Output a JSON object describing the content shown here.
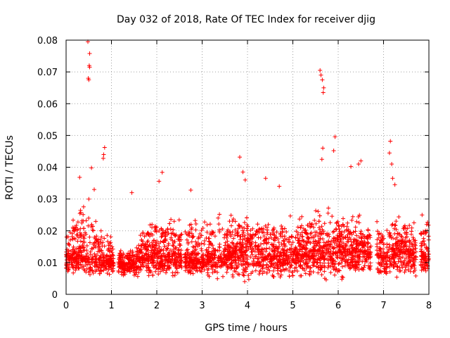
{
  "chart_data": {
    "type": "scatter",
    "title": "Day 032 of 2018, Rate Of TEC Index for receiver djig",
    "xlabel": "GPS time / hours",
    "ylabel": "ROTI / TECUs",
    "xlim": [
      0,
      8
    ],
    "ylim": [
      0,
      0.08
    ],
    "x_ticks": [
      "0",
      "1",
      "2",
      "3",
      "4",
      "5",
      "6",
      "7",
      "8"
    ],
    "y_ticks": [
      "0",
      "0.01",
      "0.02",
      "0.03",
      "0.04",
      "0.05",
      "0.06",
      "0.07",
      "0.08"
    ],
    "grid": true,
    "marker": "+",
    "color": "#ff0000",
    "series": [
      {
        "name": "ROTI",
        "highlight_points": [
          {
            "x": 0.48,
            "y": 0.0795
          },
          {
            "x": 0.52,
            "y": 0.0758
          },
          {
            "x": 0.51,
            "y": 0.072
          },
          {
            "x": 0.52,
            "y": 0.0715
          },
          {
            "x": 0.49,
            "y": 0.068
          },
          {
            "x": 0.5,
            "y": 0.0675
          },
          {
            "x": 0.56,
            "y": 0.0398
          },
          {
            "x": 0.85,
            "y": 0.0462
          },
          {
            "x": 0.83,
            "y": 0.044
          },
          {
            "x": 0.82,
            "y": 0.0428
          },
          {
            "x": 0.3,
            "y": 0.0368
          },
          {
            "x": 0.62,
            "y": 0.033
          },
          {
            "x": 1.45,
            "y": 0.032
          },
          {
            "x": 2.12,
            "y": 0.0384
          },
          {
            "x": 2.05,
            "y": 0.0356
          },
          {
            "x": 2.75,
            "y": 0.0328
          },
          {
            "x": 3.83,
            "y": 0.0432
          },
          {
            "x": 3.9,
            "y": 0.0385
          },
          {
            "x": 3.95,
            "y": 0.036
          },
          {
            "x": 4.4,
            "y": 0.0365
          },
          {
            "x": 4.7,
            "y": 0.034
          },
          {
            "x": 5.6,
            "y": 0.0705
          },
          {
            "x": 5.62,
            "y": 0.069
          },
          {
            "x": 5.65,
            "y": 0.0675
          },
          {
            "x": 5.68,
            "y": 0.065
          },
          {
            "x": 5.67,
            "y": 0.0635
          },
          {
            "x": 5.66,
            "y": 0.046
          },
          {
            "x": 5.64,
            "y": 0.0425
          },
          {
            "x": 5.93,
            "y": 0.0496
          },
          {
            "x": 5.9,
            "y": 0.0452
          },
          {
            "x": 6.28,
            "y": 0.0402
          },
          {
            "x": 6.45,
            "y": 0.041
          },
          {
            "x": 6.5,
            "y": 0.042
          },
          {
            "x": 7.15,
            "y": 0.0482
          },
          {
            "x": 7.13,
            "y": 0.0445
          },
          {
            "x": 7.18,
            "y": 0.041
          },
          {
            "x": 7.2,
            "y": 0.0365
          },
          {
            "x": 7.25,
            "y": 0.0345
          },
          {
            "x": 7.85,
            "y": 0.025
          },
          {
            "x": 7.95,
            "y": 0.022
          }
        ],
        "envelope": {
          "x_hours": [
            0.0,
            0.25,
            0.5,
            0.75,
            1.0,
            1.1,
            1.5,
            1.6,
            2.0,
            2.5,
            2.6,
            3.0,
            3.5,
            4.0,
            4.5,
            5.0,
            5.5,
            6.0,
            6.5,
            6.7,
            7.0,
            7.5,
            7.7,
            7.9,
            8.0
          ],
          "typical_low": [
            0.007,
            0.007,
            0.006,
            0.006,
            0.006,
            0.006,
            0.006,
            0.006,
            0.006,
            0.006,
            0.006,
            0.006,
            0.006,
            0.005,
            0.005,
            0.006,
            0.006,
            0.006,
            0.006,
            0.006,
            0.006,
            0.005,
            0.005,
            0.007,
            0.007
          ],
          "typical_high": [
            0.022,
            0.028,
            0.03,
            0.025,
            0.018,
            0.015,
            0.016,
            0.022,
            0.026,
            0.024,
            0.024,
            0.023,
            0.026,
            0.027,
            0.025,
            0.025,
            0.028,
            0.027,
            0.025,
            0.022,
            0.024,
            0.026,
            0.022,
            0.024,
            0.024
          ],
          "typical_center": [
            0.01,
            0.011,
            0.011,
            0.01,
            0.009,
            0.009,
            0.009,
            0.01,
            0.011,
            0.011,
            0.01,
            0.01,
            0.011,
            0.012,
            0.011,
            0.011,
            0.012,
            0.012,
            0.012,
            0.011,
            0.011,
            0.012,
            0.011,
            0.011,
            0.011
          ]
        },
        "data_gaps_hours": [
          [
            1.05,
            1.15
          ],
          [
            2.55,
            2.62
          ],
          [
            6.72,
            6.85
          ],
          [
            7.72,
            7.82
          ]
        ],
        "approx_point_count": 3500
      }
    ]
  }
}
